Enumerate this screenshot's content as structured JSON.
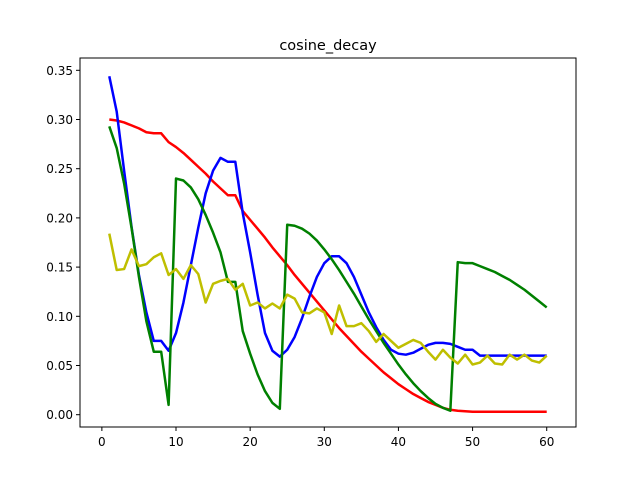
{
  "chart_data": {
    "type": "line",
    "title": "cosine_decay",
    "xlabel": "",
    "ylabel": "",
    "xlim": [
      -2.95,
      63.95
    ],
    "ylim": [
      -0.0125,
      0.3625
    ],
    "xticks": [
      0,
      10,
      20,
      30,
      40,
      50,
      60
    ],
    "yticks": [
      0.0,
      0.05,
      0.1,
      0.15,
      0.2,
      0.25,
      0.3,
      0.35
    ],
    "xtick_labels": [
      "0",
      "10",
      "20",
      "30",
      "40",
      "50",
      "60"
    ],
    "ytick_labels": [
      "0.00",
      "0.05",
      "0.10",
      "0.15",
      "0.20",
      "0.25",
      "0.30",
      "0.35"
    ],
    "grid": false,
    "legend": null,
    "x": [
      1,
      2,
      3,
      4,
      5,
      6,
      7,
      8,
      9,
      10,
      11,
      12,
      13,
      14,
      15,
      16,
      17,
      18,
      19,
      20,
      21,
      22,
      23,
      24,
      25,
      26,
      27,
      28,
      29,
      30,
      31,
      32,
      33,
      34,
      35,
      36,
      37,
      38,
      39,
      40,
      41,
      42,
      43,
      44,
      45,
      46,
      47,
      48,
      49,
      50,
      51,
      52,
      53,
      54,
      55,
      56,
      57,
      58,
      59,
      60
    ],
    "series": [
      {
        "name": "red",
        "color": "#ff0000",
        "values": [
          0.3,
          0.299,
          0.297,
          0.294,
          0.291,
          0.287,
          0.286,
          0.286,
          0.277,
          0.272,
          0.266,
          0.259,
          0.252,
          0.245,
          0.237,
          0.23,
          0.223,
          0.223,
          0.207,
          0.198,
          0.189,
          0.18,
          0.17,
          0.161,
          0.152,
          0.142,
          0.133,
          0.124,
          0.115,
          0.106,
          0.097,
          0.088,
          0.08,
          0.072,
          0.064,
          0.057,
          0.05,
          0.043,
          0.037,
          0.031,
          0.026,
          0.021,
          0.017,
          0.013,
          0.01,
          0.007,
          0.005,
          0.004,
          0.0035,
          0.003,
          0.003,
          0.003,
          0.003,
          0.003,
          0.003,
          0.003,
          0.003,
          0.003,
          0.003,
          0.003
        ]
      },
      {
        "name": "blue",
        "color": "#0000ff",
        "values": [
          0.344,
          0.308,
          0.248,
          0.191,
          0.142,
          0.104,
          0.075,
          0.075,
          0.065,
          0.083,
          0.114,
          0.152,
          0.19,
          0.225,
          0.248,
          0.261,
          0.257,
          0.257,
          0.205,
          0.165,
          0.122,
          0.083,
          0.065,
          0.059,
          0.066,
          0.079,
          0.098,
          0.12,
          0.14,
          0.154,
          0.161,
          0.161,
          0.154,
          0.14,
          0.122,
          0.104,
          0.089,
          0.076,
          0.066,
          0.062,
          0.061,
          0.063,
          0.067,
          0.071,
          0.073,
          0.073,
          0.072,
          0.069,
          0.066,
          0.066,
          0.06,
          0.06,
          0.06,
          0.06,
          0.06,
          0.06,
          0.06,
          0.06,
          0.06,
          0.06
        ]
      },
      {
        "name": "green",
        "color": "#008000",
        "values": [
          0.293,
          0.271,
          0.235,
          0.19,
          0.14,
          0.095,
          0.064,
          0.064,
          0.01,
          0.24,
          0.238,
          0.231,
          0.219,
          0.203,
          0.185,
          0.165,
          0.135,
          0.135,
          0.085,
          0.062,
          0.041,
          0.024,
          0.012,
          0.006,
          0.193,
          0.192,
          0.189,
          0.184,
          0.177,
          0.168,
          0.158,
          0.147,
          0.135,
          0.123,
          0.11,
          0.097,
          0.085,
          0.073,
          0.062,
          0.051,
          0.041,
          0.032,
          0.024,
          0.017,
          0.011,
          0.007,
          0.004,
          0.155,
          0.154,
          0.154,
          0.151,
          0.148,
          0.145,
          0.141,
          0.137,
          0.132,
          0.127,
          0.121,
          0.115,
          0.109
        ]
      },
      {
        "name": "yellow",
        "color": "#bfbf00",
        "values": [
          0.184,
          0.147,
          0.148,
          0.168,
          0.151,
          0.153,
          0.16,
          0.164,
          0.142,
          0.148,
          0.138,
          0.152,
          0.143,
          0.114,
          0.133,
          0.136,
          0.138,
          0.127,
          0.133,
          0.111,
          0.114,
          0.108,
          0.113,
          0.108,
          0.122,
          0.118,
          0.104,
          0.103,
          0.108,
          0.104,
          0.082,
          0.111,
          0.09,
          0.09,
          0.093,
          0.085,
          0.074,
          0.082,
          0.075,
          0.068,
          0.072,
          0.076,
          0.073,
          0.064,
          0.056,
          0.066,
          0.058,
          0.052,
          0.061,
          0.051,
          0.053,
          0.06,
          0.052,
          0.051,
          0.061,
          0.056,
          0.061,
          0.055,
          0.053,
          0.06
        ]
      }
    ]
  }
}
